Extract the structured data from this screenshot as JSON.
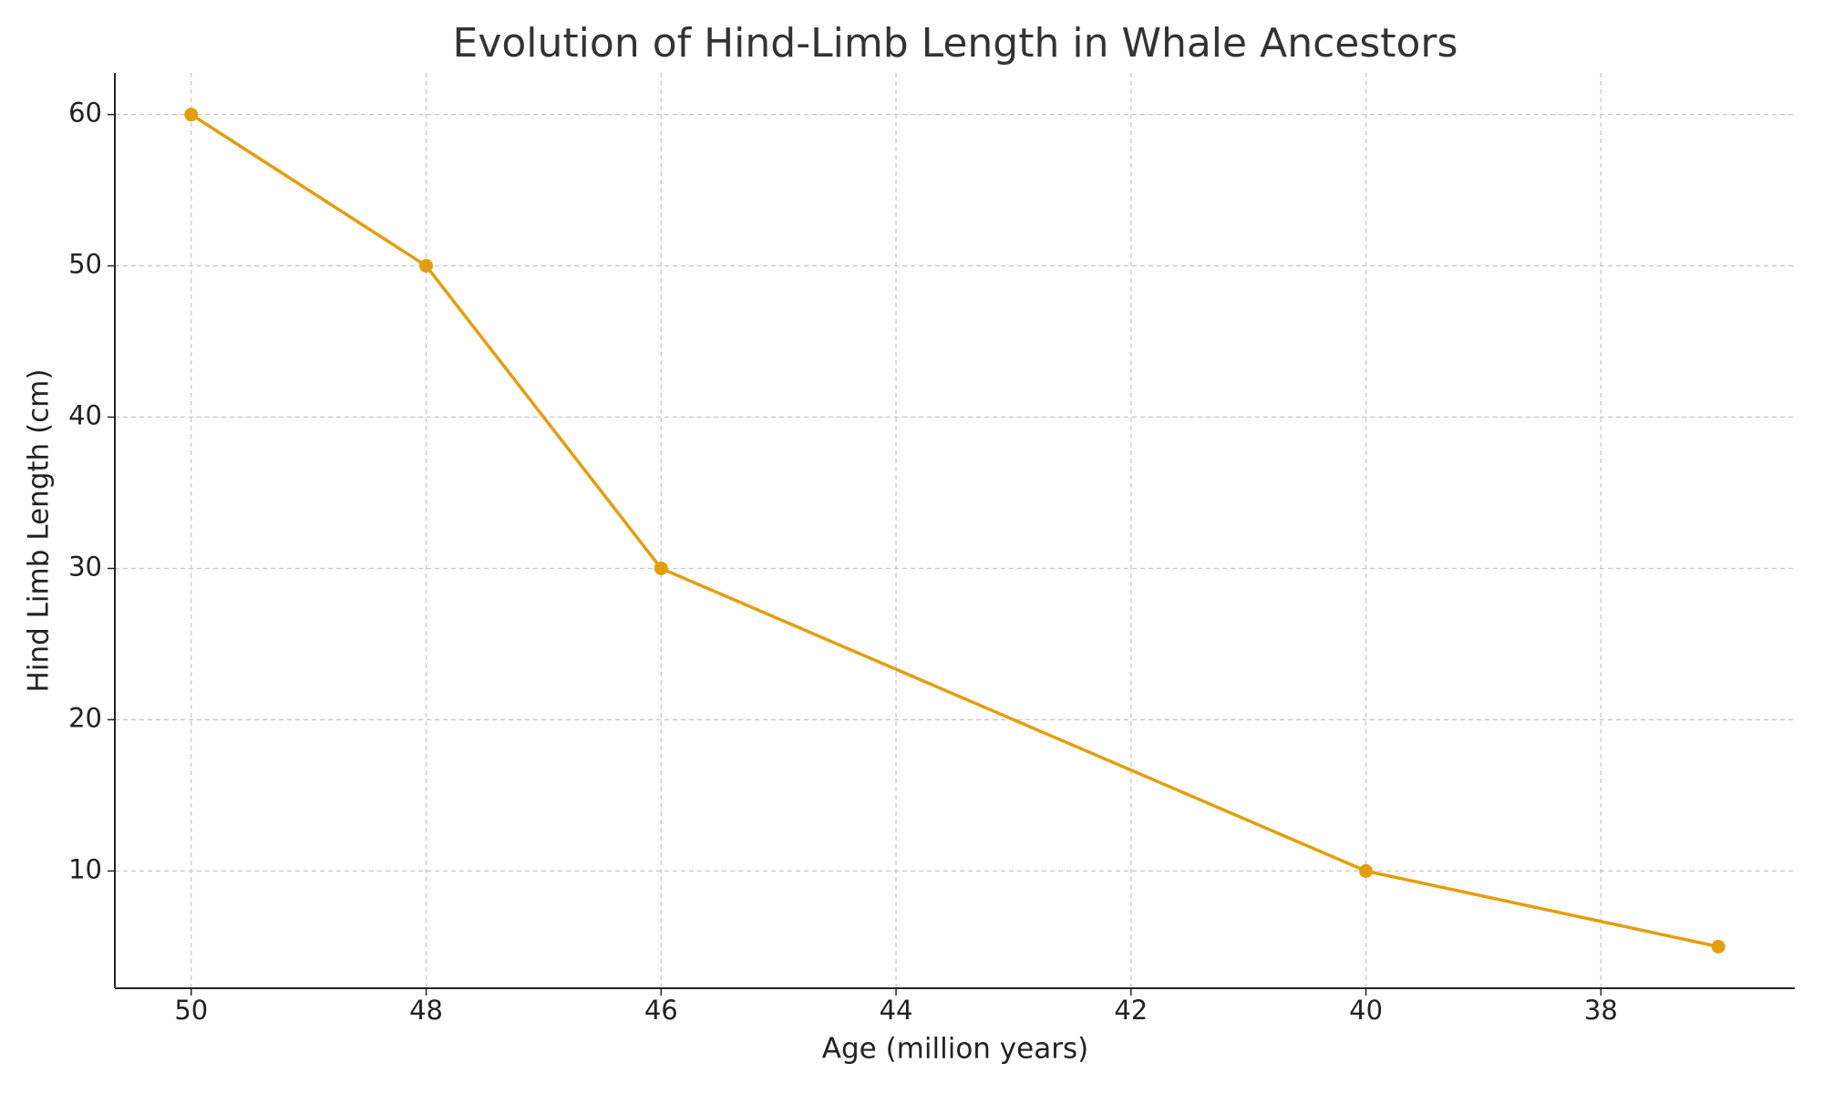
{
  "chart_data": {
    "type": "line",
    "title": "Evolution of Hind-Limb Length in Whale Ancestors",
    "x_label": "Age (million years)",
    "y_label": "Hind Limb Length (cm)",
    "x": [
      50,
      48,
      46,
      40,
      37
    ],
    "series": [
      {
        "name": "Hind Limb Length",
        "color": "#e39e10",
        "values": [
          60,
          50,
          30,
          10,
          5
        ]
      }
    ],
    "xlim": [
      50.65,
      36.35
    ],
    "ylim": [
      2.25,
      62.75
    ],
    "xticks": [
      50,
      48,
      46,
      44,
      42,
      40,
      38
    ],
    "yticks": [
      10,
      20,
      30,
      40,
      50,
      60
    ],
    "grid": true
  }
}
